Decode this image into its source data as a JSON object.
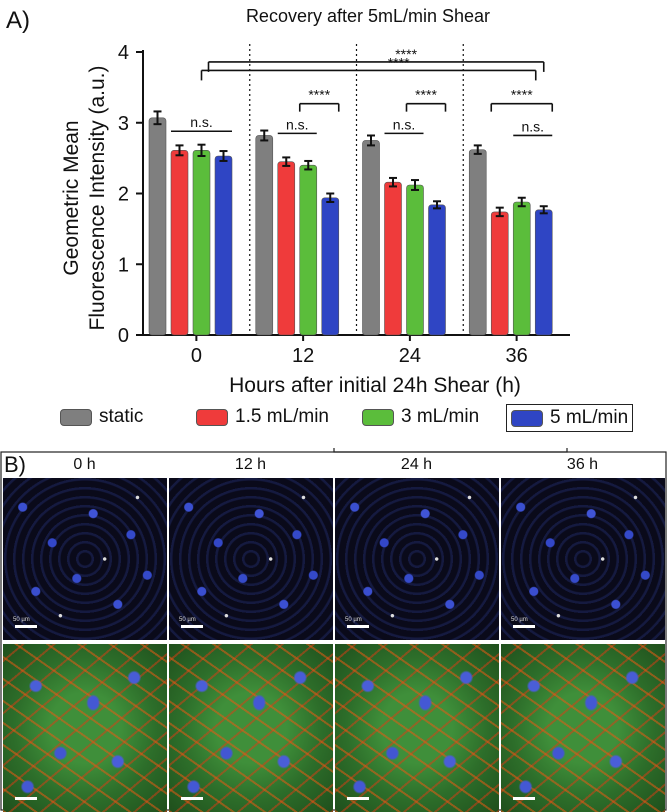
{
  "panel_a_label": "A)",
  "panel_b_label": "B)",
  "legend": [
    {
      "label": "static",
      "color": "#7f7f7f"
    },
    {
      "label": "1.5 mL/min",
      "color": "#ef3b3b"
    },
    {
      "label": "3 mL/min",
      "color": "#5bbd3b"
    },
    {
      "label": "5 mL/min",
      "color": "#2f45c4"
    }
  ],
  "chart_data": {
    "type": "bar",
    "title": "Recovery after 5mL/min Shear",
    "xlabel": "Hours after initial 24h Shear (h)",
    "ylabel": "Geometric Mean Fluorescence Intensity (a.u.)",
    "categories": [
      "0",
      "12",
      "24",
      "36"
    ],
    "ylim": [
      0,
      4
    ],
    "yticks": [
      "0",
      "1",
      "2",
      "3",
      "4"
    ],
    "series": [
      {
        "name": "static",
        "color": "#7f7f7f",
        "values": [
          3.07,
          2.82,
          2.75,
          2.62
        ],
        "errors": [
          0.09,
          0.07,
          0.07,
          0.06
        ]
      },
      {
        "name": "1.5 mL/min",
        "color": "#ef3b3b",
        "values": [
          2.61,
          2.45,
          2.16,
          1.74
        ],
        "errors": [
          0.07,
          0.06,
          0.06,
          0.06
        ]
      },
      {
        "name": "3 mL/min",
        "color": "#5bbd3b",
        "values": [
          2.61,
          2.4,
          2.12,
          1.88
        ],
        "errors": [
          0.08,
          0.06,
          0.07,
          0.06
        ]
      },
      {
        "name": "5 mL/min",
        "color": "#2f45c4",
        "values": [
          2.53,
          1.94,
          1.84,
          1.77
        ],
        "errors": [
          0.07,
          0.06,
          0.05,
          0.05
        ]
      }
    ],
    "annotations": [
      {
        "text": "n.s.",
        "group": 0,
        "from": 1,
        "to": 3,
        "y": 2.88
      },
      {
        "text": "****",
        "group": 1,
        "from": 2,
        "to": 3,
        "y": 3.27
      },
      {
        "text": "n.s.",
        "group": 1,
        "from": 1,
        "to": 2,
        "y": 2.85
      },
      {
        "text": "****",
        "group": 2,
        "from": 2,
        "to": 3,
        "y": 3.27
      },
      {
        "text": "n.s.",
        "group": 2,
        "from": 1,
        "to": 2,
        "y": 2.85
      },
      {
        "text": "****",
        "group": 3,
        "from": 1,
        "to": 3,
        "y": 3.27
      },
      {
        "text": "n.s.",
        "group": 3,
        "from": 2,
        "to": 3,
        "y": 2.82
      }
    ],
    "long_brackets": [
      {
        "text": "****",
        "from_group": 0,
        "from_series": 2,
        "to_group": 3,
        "to_series": 3,
        "y": 3.86
      },
      {
        "text": "****",
        "from_group": 0,
        "from_series": 2,
        "to_group": 3,
        "to_series": 3,
        "y": 3.74
      }
    ]
  },
  "panel_b": {
    "columns": [
      "0 h",
      "12 h",
      "24 h",
      "36 h"
    ],
    "scale_label": "50 µm"
  }
}
